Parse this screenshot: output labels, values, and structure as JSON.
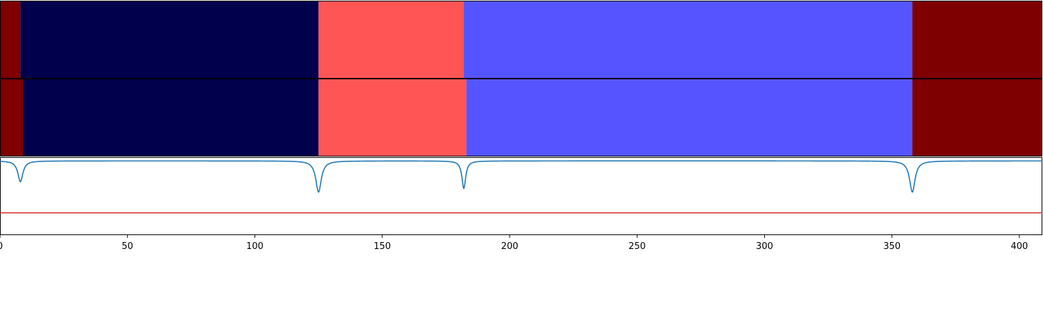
{
  "chart_data": {
    "type": "heatmap",
    "title": "",
    "xlabel": "",
    "ylabel": "",
    "xlim": [
      0,
      409
    ],
    "grid": false,
    "legend": "none",
    "x_ticks": [
      0,
      50,
      100,
      150,
      200,
      250,
      300,
      350,
      400
    ],
    "tracks": [
      {
        "segments": [
          {
            "start": 0,
            "end": 8,
            "color": "#7f0000"
          },
          {
            "start": 8,
            "end": 125,
            "color": "#00004c"
          },
          {
            "start": 125,
            "end": 182,
            "color": "#ff5555"
          },
          {
            "start": 182,
            "end": 358,
            "color": "#5555ff"
          },
          {
            "start": 358,
            "end": 409,
            "color": "#7f0000"
          }
        ]
      },
      {
        "segments": [
          {
            "start": 0,
            "end": 9,
            "color": "#7f0000"
          },
          {
            "start": 9,
            "end": 125,
            "color": "#00004c"
          },
          {
            "start": 125,
            "end": 183,
            "color": "#ff5555"
          },
          {
            "start": 183,
            "end": 358,
            "color": "#5555ff"
          },
          {
            "start": 358,
            "end": 409,
            "color": "#7f0000"
          }
        ]
      }
    ],
    "line_panel": {
      "ylim": [
        -1.0,
        0.05
      ],
      "signal": {
        "color": "#1f77b4",
        "baseline": 0,
        "dips": [
          {
            "x": 8,
            "depth": -0.28,
            "width": 1.2
          },
          {
            "x": 125,
            "depth": -0.42,
            "width": 1.3
          },
          {
            "x": 182,
            "depth": -0.37,
            "width": 0.9
          },
          {
            "x": 358,
            "depth": -0.42,
            "width": 1.3
          }
        ]
      },
      "threshold": {
        "value": -0.7,
        "color": "#d62728"
      }
    }
  }
}
